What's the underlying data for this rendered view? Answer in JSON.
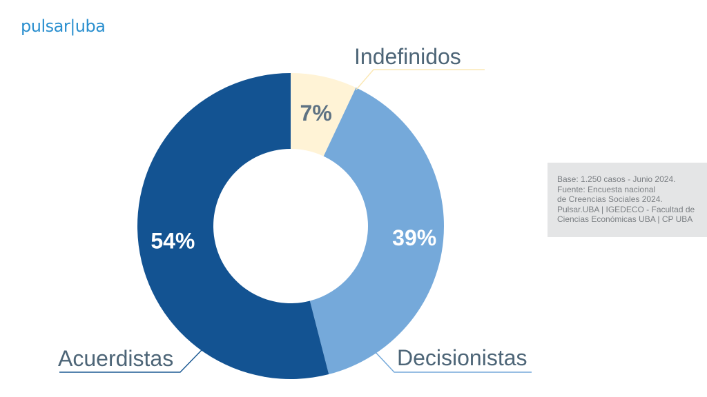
{
  "logo": {
    "left": "pulsar",
    "right": "uba"
  },
  "colors": {
    "acuerdistas": "#135392",
    "decisionistas": "#75a9da",
    "indefinidos": "#fff3d6",
    "category_text": "#4d6577",
    "leader_acuerdistas": "#1d5a93",
    "leader_decisionistas": "#75a9da",
    "leader_indefinidos": "#fbe8b5"
  },
  "chart_data": {
    "type": "pie",
    "donut": true,
    "categories": [
      "Indefinidos",
      "Decisionistas",
      "Acuerdistas"
    ],
    "values": [
      7,
      39,
      54
    ],
    "value_labels": [
      "7%",
      "39%",
      "54%"
    ],
    "unit": "%"
  },
  "source": {
    "lines": [
      "Base: 1.250 casos - Junio 2024.",
      "Fuente: Encuesta nacional",
      "de Creencias Sociales 2024.",
      "Pulsar.UBA | IGEDECO - Facultad de",
      "Ciencias Económicas UBA | CP UBA"
    ]
  }
}
